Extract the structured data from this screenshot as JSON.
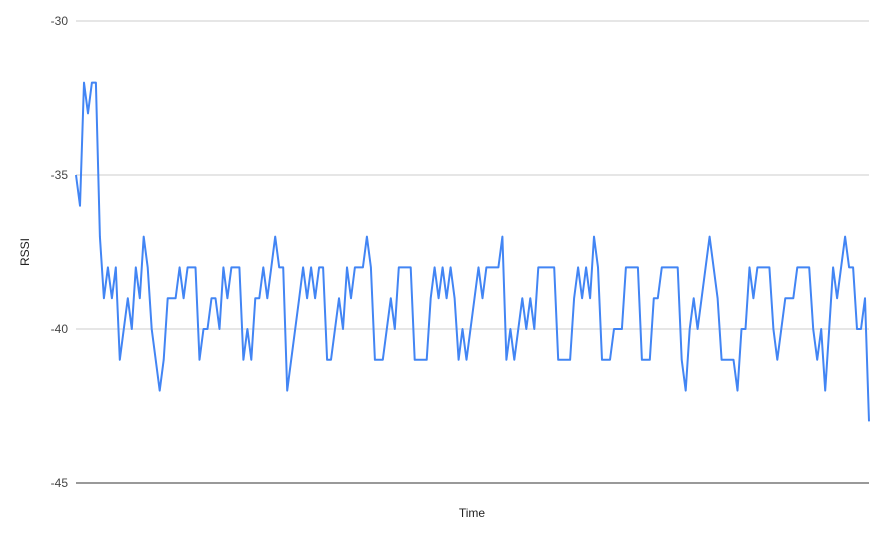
{
  "chart_data": {
    "type": "line",
    "title": "",
    "xlabel": "Time",
    "ylabel": "RSSI",
    "ylim": [
      -45,
      -30
    ],
    "yticks": [
      "-30",
      "-35",
      "-40",
      "-45"
    ],
    "grid": true,
    "legend": "none",
    "color": "#4285f4",
    "values": [
      -35,
      -36,
      -32,
      -33,
      -32,
      -32,
      -37,
      -39,
      -38,
      -39,
      -38,
      -41,
      -40,
      -39,
      -40,
      -38,
      -39,
      -37,
      -38,
      -40,
      -41,
      -42,
      -41,
      -39,
      -39,
      -39,
      -38,
      -39,
      -38,
      -38,
      -38,
      -41,
      -40,
      -40,
      -39,
      -39,
      -40,
      -38,
      -39,
      -38,
      -38,
      -38,
      -41,
      -40,
      -41,
      -39,
      -39,
      -38,
      -39,
      -38,
      -37,
      -38,
      -38,
      -42,
      -41,
      -40,
      -39,
      -38,
      -39,
      -38,
      -39,
      -38,
      -38,
      -41,
      -41,
      -40,
      -39,
      -40,
      -38,
      -39,
      -38,
      -38,
      -38,
      -37,
      -38,
      -41,
      -41,
      -41,
      -40,
      -39,
      -40,
      -38,
      -38,
      -38,
      -38,
      -41,
      -41,
      -41,
      -41,
      -39,
      -38,
      -39,
      -38,
      -39,
      -38,
      -39,
      -41,
      -40,
      -41,
      -40,
      -39,
      -38,
      -39,
      -38,
      -38,
      -38,
      -38,
      -37,
      -41,
      -40,
      -41,
      -40,
      -39,
      -40,
      -39,
      -40,
      -38,
      -38,
      -38,
      -38,
      -38,
      -41,
      -41,
      -41,
      -41,
      -39,
      -38,
      -39,
      -38,
      -39,
      -37,
      -38,
      -41,
      -41,
      -41,
      -40,
      -40,
      -40,
      -38,
      -38,
      -38,
      -38,
      -41,
      -41,
      -41,
      -39,
      -39,
      -38,
      -38,
      -38,
      -38,
      -38,
      -41,
      -42,
      -40,
      -39,
      -40,
      -39,
      -38,
      -37,
      -38,
      -39,
      -41,
      -41,
      -41,
      -41,
      -42,
      -40,
      -40,
      -38,
      -39,
      -38,
      -38,
      -38,
      -38,
      -40,
      -41,
      -40,
      -39,
      -39,
      -39,
      -38,
      -38,
      -38,
      -38,
      -40,
      -41,
      -40,
      -42,
      -40,
      -38,
      -39,
      -38,
      -37,
      -38,
      -38,
      -40,
      -40,
      -39,
      -43
    ]
  }
}
